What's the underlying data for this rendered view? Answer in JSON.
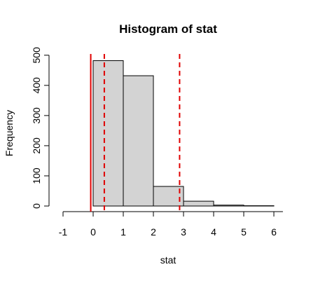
{
  "chart_data": {
    "type": "bar",
    "title": "Histogram of stat",
    "xlabel": "stat",
    "ylabel": "Frequency",
    "bins": [
      {
        "start": 0,
        "end": 1,
        "count": 482
      },
      {
        "start": 1,
        "end": 2,
        "count": 432
      },
      {
        "start": 2,
        "end": 3,
        "count": 65
      },
      {
        "start": 3,
        "end": 4,
        "count": 16
      },
      {
        "start": 4,
        "end": 5,
        "count": 3
      },
      {
        "start": 5,
        "end": 6,
        "count": 1
      }
    ],
    "xlim": [
      -1,
      6.3
    ],
    "ylim": [
      0,
      500
    ],
    "x_ticks": [
      -1,
      0,
      1,
      2,
      3,
      4,
      5,
      6
    ],
    "y_ticks": [
      0,
      100,
      200,
      300,
      400,
      500
    ],
    "bar_fill": "#d3d3d3",
    "bar_stroke": "#000000",
    "vertical_lines": [
      {
        "x": -0.08,
        "style": "solid",
        "color": "#e00000"
      },
      {
        "x": 0.37,
        "style": "dashed",
        "color": "#e00000"
      },
      {
        "x": 2.87,
        "style": "dashed",
        "color": "#e00000"
      }
    ],
    "grid": false
  }
}
